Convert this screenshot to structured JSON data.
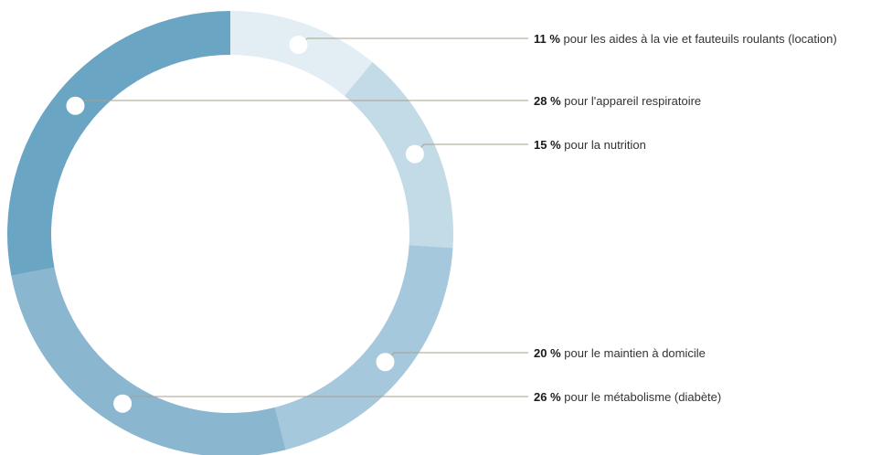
{
  "chart_data": {
    "type": "pie",
    "style": "donut",
    "start_angle": "top, clockwise",
    "segments": [
      {
        "value": 11,
        "percent_label": "11 %",
        "label": "pour les aides à la vie et fauteuils roulants (location)",
        "color": "#e2edf4"
      },
      {
        "value": 15,
        "percent_label": "15 %",
        "label": "pour la nutrition",
        "color": "#c3dae7"
      },
      {
        "value": 20,
        "percent_label": "20 %",
        "label": "pour le maintien à domicile",
        "color": "#a6c8dc"
      },
      {
        "value": 26,
        "percent_label": "26 %",
        "label": "pour le métabolisme (diabète)",
        "color": "#8ab6cf"
      },
      {
        "value": 28,
        "percent_label": "28 %",
        "label": "pour l'appareil respiratoire",
        "color": "#6aa5c4"
      }
    ],
    "label_order": [
      0,
      4,
      1,
      2,
      3
    ]
  }
}
